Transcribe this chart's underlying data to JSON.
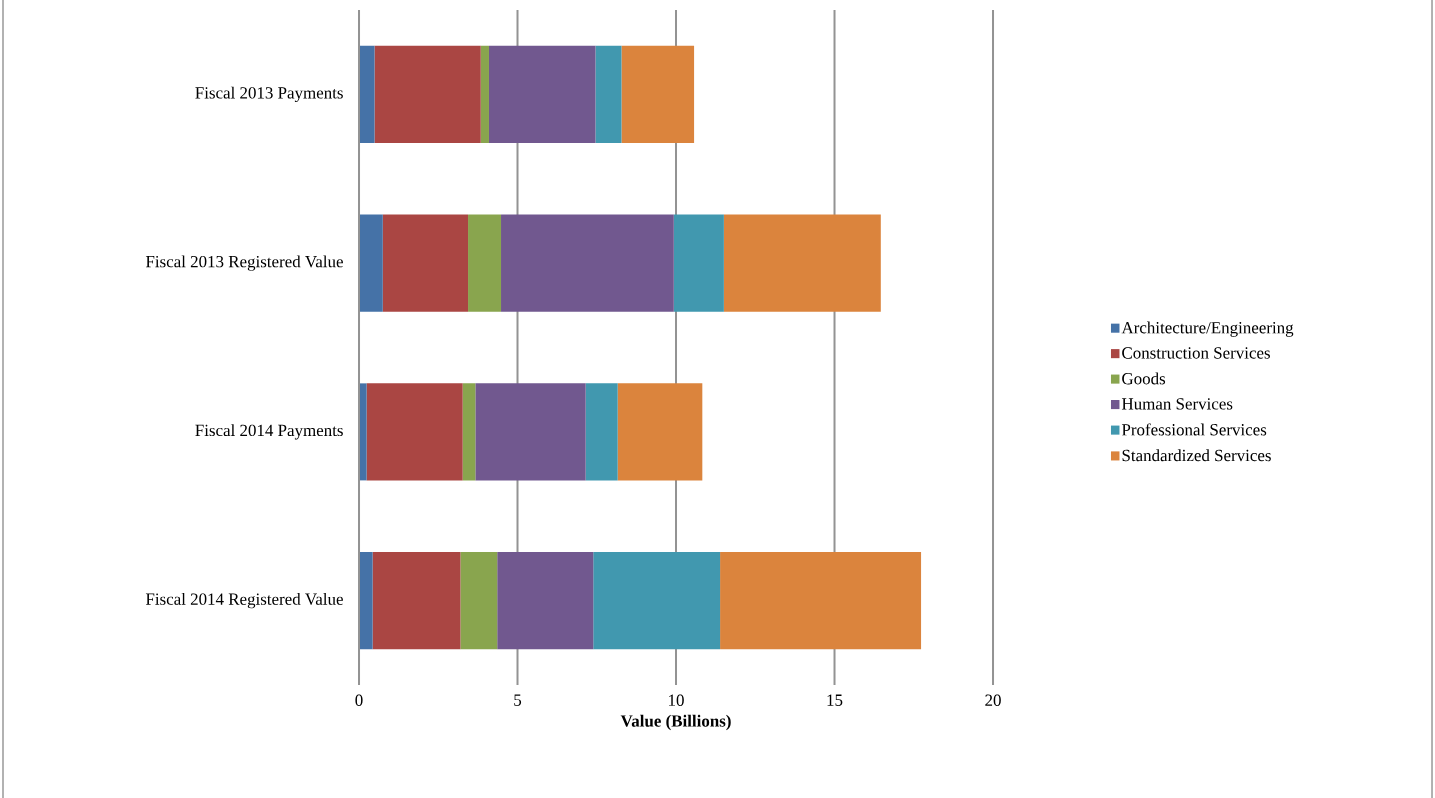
{
  "chart_data": {
    "type": "bar",
    "orientation": "horizontal",
    "stacked": true,
    "xlabel": "Value (Billions)",
    "categories": [
      "Fiscal 2013 Payments",
      "Fiscal 2013 Registered Value",
      "Fiscal 2014 Payments",
      "Fiscal 2014 Registered Value"
    ],
    "series": [
      {
        "name": "Architecture/Engineering",
        "color": "#4572a7",
        "values": [
          0.49,
          0.75,
          0.24,
          0.43
        ]
      },
      {
        "name": "Construction Services",
        "color": "#aa4643",
        "values": [
          3.35,
          2.69,
          3.03,
          2.77
        ]
      },
      {
        "name": "Goods",
        "color": "#89a54e",
        "values": [
          0.26,
          1.04,
          0.4,
          1.16
        ]
      },
      {
        "name": "Human Services",
        "color": "#71588f",
        "values": [
          3.36,
          5.45,
          3.48,
          3.03
        ]
      },
      {
        "name": "Professional Services",
        "color": "#4198af",
        "values": [
          0.82,
          1.58,
          1.01,
          4.0
        ]
      },
      {
        "name": "Standardized Services",
        "color": "#db843d",
        "values": [
          2.29,
          4.95,
          2.67,
          6.34
        ]
      }
    ],
    "xlim": [
      0,
      20
    ],
    "xticks": [
      0,
      5,
      10,
      15,
      20
    ],
    "grid": "x",
    "legend": "right"
  }
}
